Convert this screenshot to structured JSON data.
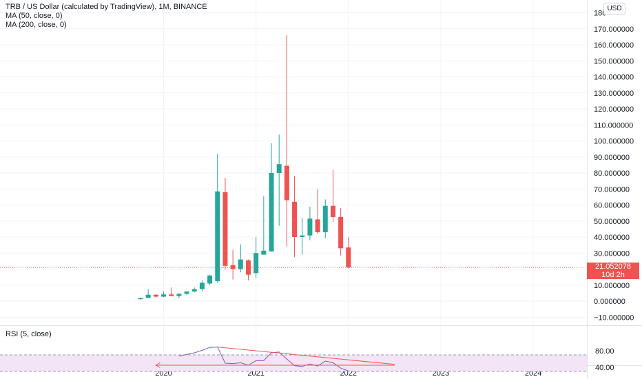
{
  "header": {
    "title": "TRB / US Dollar (calculated by TradingView), 1M, BINANCE",
    "indicator_1": "MA (50, close, 0)",
    "indicator_2": "MA (200, close, 0)",
    "currency": "USD"
  },
  "last_price": {
    "value": "21.052078",
    "countdown": "10d 2h",
    "color": "#ef5350"
  },
  "rsi_panel": {
    "label": "RSI (5, close)",
    "ticks": [
      "80.00",
      "40.00"
    ]
  },
  "colors": {
    "up": "#26a69a",
    "down": "#ef5350",
    "rsi_line": "#7e57c2",
    "rsi_band": "#f3e5f5",
    "trendline": "#ef5350"
  },
  "chart_data": {
    "type": "candlestick",
    "title": "TRB / US Dollar (calculated by TradingView), 1M, BINANCE",
    "price_axis": {
      "ticks": [
        "180",
        "170.000000",
        "160.000000",
        "150.000000",
        "140.000000",
        "130.000000",
        "120.000000",
        "110.000000",
        "100.000000",
        "90.000000",
        "80.000000",
        "70.000000",
        "60.000000",
        "50.000000",
        "40.000000",
        "30.000000",
        "20.000000",
        "10.000000",
        "0.000000",
        "−10.000000"
      ],
      "range": [
        -12,
        182
      ]
    },
    "time_axis": {
      "ticks": [
        "2020",
        "2021",
        "2022",
        "2023",
        "2024"
      ]
    },
    "candles": [
      {
        "date": "2019-10",
        "open": 1.2,
        "high": 2.2,
        "low": 1.0,
        "close": 2.0
      },
      {
        "date": "2019-11",
        "open": 2.0,
        "high": 7.5,
        "low": 1.8,
        "close": 4.0
      },
      {
        "date": "2019-12",
        "open": 4.0,
        "high": 4.6,
        "low": 2.2,
        "close": 2.8
      },
      {
        "date": "2020-01",
        "open": 2.8,
        "high": 6.0,
        "low": 2.5,
        "close": 4.2
      },
      {
        "date": "2020-02",
        "open": 4.2,
        "high": 8.5,
        "low": 3.0,
        "close": 3.2
      },
      {
        "date": "2020-03",
        "open": 3.2,
        "high": 5.0,
        "low": 1.9,
        "close": 4.5
      },
      {
        "date": "2020-04",
        "open": 4.5,
        "high": 6.3,
        "low": 3.9,
        "close": 6.0
      },
      {
        "date": "2020-05",
        "open": 6.0,
        "high": 8.5,
        "low": 5.5,
        "close": 7.5
      },
      {
        "date": "2020-06",
        "open": 7.5,
        "high": 13.0,
        "low": 6.0,
        "close": 11.5
      },
      {
        "date": "2020-07",
        "open": 11.0,
        "high": 16.5,
        "low": 10.0,
        "close": 16.0
      },
      {
        "date": "2020-08",
        "open": 12.5,
        "high": 92.0,
        "low": 11.5,
        "close": 68.5
      },
      {
        "date": "2020-09",
        "open": 68.0,
        "high": 77.0,
        "low": 20.0,
        "close": 22.0
      },
      {
        "date": "2020-10",
        "open": 22.5,
        "high": 32.0,
        "low": 13.5,
        "close": 20.0
      },
      {
        "date": "2020-11",
        "open": 20.0,
        "high": 35.5,
        "low": 18.0,
        "close": 26.0
      },
      {
        "date": "2020-12",
        "open": 25.5,
        "high": 26.0,
        "low": 13.0,
        "close": 16.5
      },
      {
        "date": "2021-01",
        "open": 17.5,
        "high": 40.0,
        "low": 14.5,
        "close": 30.0
      },
      {
        "date": "2021-02",
        "open": 29.0,
        "high": 65.5,
        "low": 29.0,
        "close": 31.5
      },
      {
        "date": "2021-03",
        "open": 31.0,
        "high": 98.5,
        "low": 31.0,
        "close": 80.0
      },
      {
        "date": "2021-04",
        "open": 80.0,
        "high": 104.0,
        "low": 47.0,
        "close": 85.5
      },
      {
        "date": "2021-05",
        "open": 84.5,
        "high": 166.0,
        "low": 34.0,
        "close": 63.0
      },
      {
        "date": "2021-06",
        "open": 62.0,
        "high": 78.0,
        "low": 27.5,
        "close": 40.0
      },
      {
        "date": "2021-07",
        "open": 40.0,
        "high": 52.0,
        "low": 29.0,
        "close": 41.0
      },
      {
        "date": "2021-08",
        "open": 41.0,
        "high": 59.0,
        "low": 38.0,
        "close": 51.5
      },
      {
        "date": "2021-09",
        "open": 51.0,
        "high": 70.0,
        "low": 42.0,
        "close": 43.0
      },
      {
        "date": "2021-10",
        "open": 43.0,
        "high": 63.5,
        "low": 39.5,
        "close": 59.5
      },
      {
        "date": "2021-11",
        "open": 59.5,
        "high": 82.0,
        "low": 49.5,
        "close": 52.5
      },
      {
        "date": "2021-12",
        "open": 52.5,
        "high": 58.0,
        "low": 28.5,
        "close": 33.0
      },
      {
        "date": "2022-01",
        "open": 33.5,
        "high": 40.0,
        "low": 20.5,
        "close": 21.05
      }
    ],
    "last_price": 21.052078,
    "rsi": {
      "range": [
        30,
        95
      ],
      "band": [
        70,
        30
      ],
      "values": [
        {
          "date": "2020-03",
          "value": 67
        },
        {
          "date": "2020-05",
          "value": 75
        },
        {
          "date": "2020-06",
          "value": 81
        },
        {
          "date": "2020-07",
          "value": 88
        },
        {
          "date": "2020-08",
          "value": 89
        },
        {
          "date": "2020-09",
          "value": 50
        },
        {
          "date": "2020-10",
          "value": 49
        },
        {
          "date": "2020-11",
          "value": 51
        },
        {
          "date": "2020-12",
          "value": 45
        },
        {
          "date": "2021-01",
          "value": 56
        },
        {
          "date": "2021-02",
          "value": 56
        },
        {
          "date": "2021-03",
          "value": 75
        },
        {
          "date": "2021-04",
          "value": 77
        },
        {
          "date": "2021-05",
          "value": 60
        },
        {
          "date": "2021-06",
          "value": 44
        },
        {
          "date": "2021-07",
          "value": 42
        },
        {
          "date": "2021-08",
          "value": 48
        },
        {
          "date": "2021-09",
          "value": 43
        },
        {
          "date": "2021-10",
          "value": 55
        },
        {
          "date": "2021-11",
          "value": 51
        },
        {
          "date": "2021-12",
          "value": 38
        },
        {
          "date": "2022-01",
          "value": 31
        }
      ],
      "trendlines": [
        {
          "from": {
            "date": "2020-08",
            "value": 89
          },
          "to": {
            "date": "2022-07",
            "value": 47
          }
        },
        {
          "from": {
            "date": "2019-12",
            "value": 45
          },
          "to": {
            "date": "2022-07",
            "value": 45
          }
        }
      ]
    }
  }
}
